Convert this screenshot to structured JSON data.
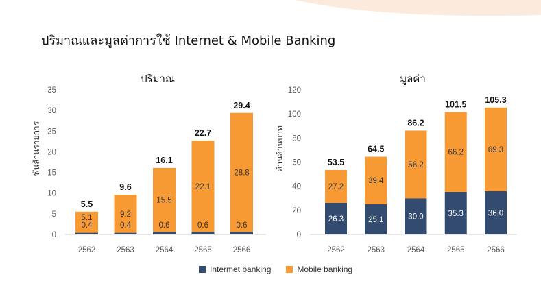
{
  "title": "ปริมาณและมูลค่าการใช้ Internet & Mobile Banking",
  "colors": {
    "internet": "#324b6e",
    "mobile": "#f79a34",
    "accent_bg": "#fcebdc"
  },
  "legend": {
    "internet": "Intermet banking",
    "mobile": "Mobile banking"
  },
  "chart_data": [
    {
      "type": "bar",
      "stacked": true,
      "title": "ปริมาณ",
      "ylabel": "พันล้านรายการ",
      "categories": [
        "2562",
        "2563",
        "2564",
        "2565",
        "2566"
      ],
      "ylim": [
        0,
        35
      ],
      "yticks": [
        0,
        5,
        10,
        15,
        20,
        25,
        30,
        35
      ],
      "series": [
        {
          "name": "Intermet banking",
          "values": [
            0.4,
            0.4,
            0.6,
            0.6,
            0.6
          ]
        },
        {
          "name": "Mobile banking",
          "values": [
            5.1,
            9.2,
            15.5,
            22.1,
            28.8
          ]
        }
      ],
      "totals": [
        5.5,
        9.6,
        16.1,
        22.7,
        29.4
      ]
    },
    {
      "type": "bar",
      "stacked": true,
      "title": "มูลค่า",
      "ylabel": "ล้านล้านบาท",
      "categories": [
        "2562",
        "2563",
        "2564",
        "2565",
        "2566"
      ],
      "ylim": [
        0,
        120
      ],
      "yticks": [
        0,
        20,
        40,
        60,
        80,
        100,
        120
      ],
      "series": [
        {
          "name": "Intermet banking",
          "values": [
            26.3,
            25.1,
            30.0,
            35.3,
            36.0
          ]
        },
        {
          "name": "Mobile banking",
          "values": [
            27.2,
            39.4,
            56.2,
            66.2,
            69.3
          ]
        }
      ],
      "totals": [
        53.5,
        64.5,
        86.2,
        101.5,
        105.3
      ]
    }
  ]
}
